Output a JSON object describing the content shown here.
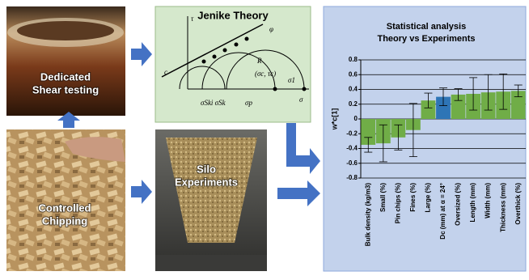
{
  "panels": {
    "shear": {
      "lines": [
        "Dedicated",
        "Shear testing"
      ]
    },
    "chipping": {
      "lines": [
        "Controlled",
        "Chipping"
      ]
    },
    "silo": {
      "lines": [
        "Silo",
        "Experiments"
      ]
    },
    "jenike": {
      "title": "Jenike Theory",
      "labels": [
        "c",
        "R",
        "φ",
        "(σc, τc)",
        "σSki σSk",
        "σp",
        "σ1",
        "σ",
        "τ"
      ]
    }
  },
  "chart": {
    "type": "bar",
    "title": [
      "Statistical analysis",
      "Theory vs Experiments"
    ],
    "ylabel": "w*c[1]",
    "categories": [
      "Bulk density (kg/m3)",
      "Small (%)",
      "Pin chips (%)",
      "Fines (%)",
      "Large (%)",
      "Dc (mm) at α = 24°",
      "Oversized (%)",
      "Length (mm)",
      "Width (mm)",
      "Thickness (mm)",
      "Overthick (%)"
    ],
    "values": [
      -0.35,
      -0.33,
      -0.25,
      -0.15,
      0.25,
      0.3,
      0.33,
      0.34,
      0.36,
      0.37,
      0.38
    ],
    "errors": [
      0.1,
      0.25,
      0.17,
      0.36,
      0.1,
      0.12,
      0.08,
      0.22,
      0.24,
      0.24,
      0.08
    ],
    "colors": [
      "#70ad47",
      "#70ad47",
      "#70ad47",
      "#70ad47",
      "#70ad47",
      "#2e75b6",
      "#70ad47",
      "#70ad47",
      "#70ad47",
      "#70ad47",
      "#70ad47"
    ],
    "ylim": [
      -0.8,
      0.8
    ],
    "yticks": [
      -0.8,
      -0.6,
      -0.4,
      -0.2,
      0,
      0.2,
      0.4,
      0.6,
      0.8
    ],
    "grid": true
  }
}
